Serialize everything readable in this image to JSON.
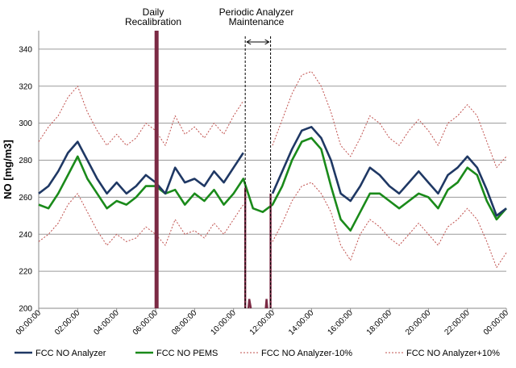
{
  "chart_data": {
    "type": "line",
    "title": "",
    "xlabel": "",
    "ylabel": "NO [mg/m3]",
    "ylim": [
      200,
      350
    ],
    "yticks": [
      200,
      220,
      240,
      260,
      280,
      300,
      320,
      340
    ],
    "xlim_hours": [
      0,
      24
    ],
    "x_tick_labels": [
      "00:00:00",
      "02:00:00",
      "04:00:00",
      "06:00:00",
      "08:00:00",
      "10:00:00",
      "12:00:00",
      "14:00:00",
      "16:00:00",
      "18:00:00",
      "20:00:00",
      "22:00:00",
      "00:00:00"
    ],
    "grid": "horizontal",
    "legend_position": "bottom",
    "annotations": {
      "daily_recalibration": "Daily\nRecalibration",
      "periodic_maintenance": "Periodic  Analyzer\nMaintenance"
    },
    "colors": {
      "analyzer": "#1f3864",
      "pems": "#1a8a1a",
      "band": "#c0504d",
      "calibration": "#7b2a44"
    },
    "series": [
      {
        "name": "FCC NO Analyzer",
        "x": [
          0,
          0.5,
          1,
          1.5,
          2,
          2.5,
          3,
          3.5,
          4,
          4.5,
          5,
          5.5,
          6,
          6.5,
          7,
          7.5,
          8,
          8.5,
          9,
          9.5,
          10,
          10.5,
          11,
          11.5,
          12,
          12.5,
          13,
          13.5,
          14,
          14.5,
          15,
          15.5,
          16,
          16.5,
          17,
          17.5,
          18,
          18.5,
          19,
          19.5,
          20,
          20.5,
          21,
          21.5,
          22,
          22.5,
          23,
          23.5,
          24
        ],
        "values": [
          262,
          266,
          274,
          284,
          290,
          280,
          270,
          262,
          268,
          262,
          266,
          272,
          268,
          262,
          276,
          268,
          270,
          266,
          274,
          268,
          276,
          284,
          null,
          null,
          262,
          274,
          286,
          296,
          298,
          292,
          280,
          262,
          258,
          266,
          276,
          272,
          266,
          262,
          268,
          274,
          268,
          262,
          272,
          276,
          282,
          276,
          264,
          250,
          254
        ]
      },
      {
        "name": "FCC NO PEMS",
        "x": [
          0,
          0.5,
          1,
          1.5,
          2,
          2.5,
          3,
          3.5,
          4,
          4.5,
          5,
          5.5,
          6,
          6.5,
          7,
          7.5,
          8,
          8.5,
          9,
          9.5,
          10,
          10.5,
          11,
          11.5,
          12,
          12.5,
          13,
          13.5,
          14,
          14.5,
          15,
          15.5,
          16,
          16.5,
          17,
          17.5,
          18,
          18.5,
          19,
          19.5,
          20,
          20.5,
          21,
          21.5,
          22,
          22.5,
          23,
          23.5,
          24
        ],
        "values": [
          256,
          254,
          262,
          272,
          282,
          270,
          262,
          254,
          258,
          256,
          260,
          266,
          266,
          262,
          264,
          256,
          262,
          258,
          264,
          256,
          262,
          270,
          254,
          252,
          256,
          266,
          280,
          290,
          292,
          286,
          266,
          248,
          242,
          252,
          262,
          262,
          258,
          254,
          258,
          262,
          260,
          254,
          264,
          268,
          276,
          272,
          258,
          248,
          254
        ]
      },
      {
        "name": "FCC NO Analyzer-10%",
        "x": [
          0,
          0.5,
          1,
          1.5,
          2,
          2.5,
          3,
          3.5,
          4,
          4.5,
          5,
          5.5,
          6,
          6.5,
          7,
          7.5,
          8,
          8.5,
          9,
          9.5,
          10,
          10.5,
          11,
          11.5,
          12,
          12.5,
          13,
          13.5,
          14,
          14.5,
          15,
          15.5,
          16,
          16.5,
          17,
          17.5,
          18,
          18.5,
          19,
          19.5,
          20,
          20.5,
          21,
          21.5,
          22,
          22.5,
          23,
          23.5,
          24
        ],
        "values": [
          236,
          240,
          246,
          256,
          262,
          252,
          242,
          234,
          240,
          236,
          238,
          244,
          240,
          234,
          248,
          240,
          242,
          238,
          246,
          240,
          248,
          256,
          null,
          null,
          236,
          246,
          258,
          266,
          268,
          262,
          252,
          234,
          226,
          240,
          248,
          244,
          238,
          234,
          240,
          246,
          240,
          234,
          244,
          248,
          254,
          248,
          236,
          222,
          230
        ]
      },
      {
        "name": "FCC NO Analyzer+10%",
        "x": [
          0,
          0.5,
          1,
          1.5,
          2,
          2.5,
          3,
          3.5,
          4,
          4.5,
          5,
          5.5,
          6,
          6.5,
          7,
          7.5,
          8,
          8.5,
          9,
          9.5,
          10,
          10.5,
          11,
          11.5,
          12,
          12.5,
          13,
          13.5,
          14,
          14.5,
          15,
          15.5,
          16,
          16.5,
          17,
          17.5,
          18,
          18.5,
          19,
          19.5,
          20,
          20.5,
          21,
          21.5,
          22,
          22.5,
          23,
          23.5,
          24
        ],
        "values": [
          290,
          298,
          304,
          314,
          320,
          306,
          296,
          288,
          294,
          288,
          292,
          300,
          296,
          288,
          304,
          294,
          298,
          292,
          300,
          294,
          304,
          312,
          null,
          null,
          288,
          302,
          316,
          326,
          328,
          320,
          306,
          288,
          282,
          292,
          304,
          300,
          292,
          288,
          296,
          302,
          296,
          288,
          300,
          304,
          310,
          304,
          290,
          276,
          282
        ]
      }
    ]
  }
}
